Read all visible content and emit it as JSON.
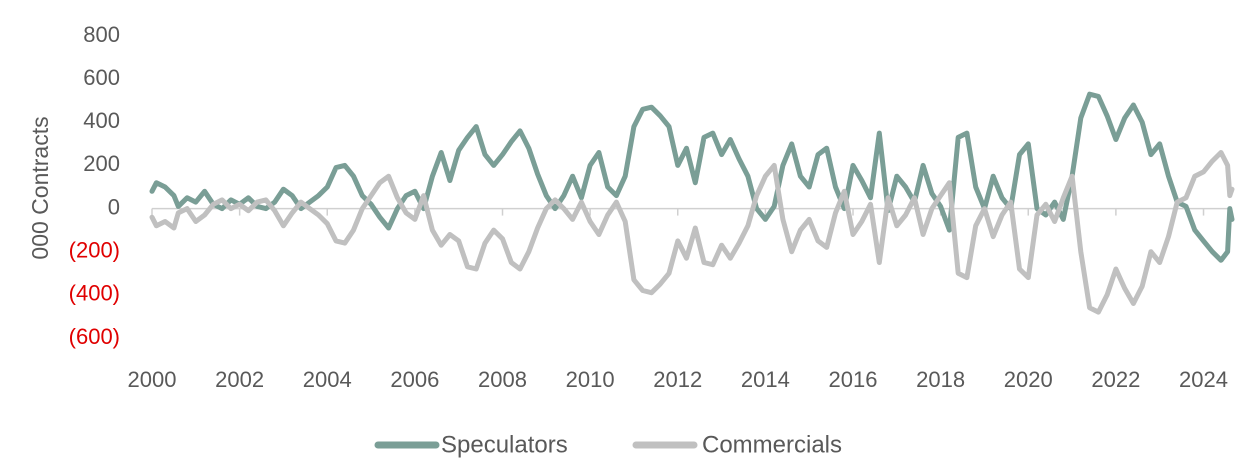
{
  "chart_data": {
    "type": "line",
    "title": "",
    "xlabel": "",
    "ylabel": "000 Contracts",
    "ylim": [
      -600,
      800
    ],
    "y_ticks": [
      800,
      600,
      400,
      200,
      0,
      -200,
      -400,
      -600
    ],
    "y_tick_labels": [
      "800",
      "600",
      "400",
      "200",
      "0",
      "(200)",
      "(400)",
      "(600)"
    ],
    "negative_tick_color": "#e00000",
    "xlim": [
      2000,
      2024.3
    ],
    "x_tick_labels": [
      "2000",
      "2002",
      "2004",
      "2006",
      "2008",
      "2010",
      "2012",
      "2014",
      "2016",
      "2018",
      "2020",
      "2022",
      "2024"
    ],
    "grid": false,
    "legend_position": "bottom",
    "series": [
      {
        "name": "Speculators",
        "color": "#7a9e96",
        "points": [
          [
            2000.0,
            80
          ],
          [
            2000.1,
            120
          ],
          [
            2000.3,
            100
          ],
          [
            2000.5,
            60
          ],
          [
            2000.6,
            10
          ],
          [
            2000.8,
            50
          ],
          [
            2001.0,
            30
          ],
          [
            2001.2,
            80
          ],
          [
            2001.4,
            20
          ],
          [
            2001.6,
            0
          ],
          [
            2001.8,
            40
          ],
          [
            2002.0,
            20
          ],
          [
            2002.2,
            50
          ],
          [
            2002.4,
            10
          ],
          [
            2002.6,
            0
          ],
          [
            2002.8,
            30
          ],
          [
            2003.0,
            90
          ],
          [
            2003.2,
            60
          ],
          [
            2003.4,
            0
          ],
          [
            2003.6,
            30
          ],
          [
            2003.8,
            60
          ],
          [
            2004.0,
            100
          ],
          [
            2004.2,
            190
          ],
          [
            2004.4,
            200
          ],
          [
            2004.6,
            150
          ],
          [
            2004.8,
            60
          ],
          [
            2005.0,
            20
          ],
          [
            2005.2,
            -40
          ],
          [
            2005.4,
            -90
          ],
          [
            2005.6,
            0
          ],
          [
            2005.8,
            60
          ],
          [
            2006.0,
            80
          ],
          [
            2006.2,
            0
          ],
          [
            2006.4,
            150
          ],
          [
            2006.6,
            260
          ],
          [
            2006.8,
            130
          ],
          [
            2007.0,
            270
          ],
          [
            2007.2,
            330
          ],
          [
            2007.4,
            380
          ],
          [
            2007.6,
            250
          ],
          [
            2007.8,
            200
          ],
          [
            2008.0,
            250
          ],
          [
            2008.2,
            310
          ],
          [
            2008.4,
            360
          ],
          [
            2008.6,
            280
          ],
          [
            2008.8,
            160
          ],
          [
            2009.0,
            60
          ],
          [
            2009.2,
            0
          ],
          [
            2009.4,
            60
          ],
          [
            2009.6,
            150
          ],
          [
            2009.8,
            50
          ],
          [
            2010.0,
            200
          ],
          [
            2010.2,
            260
          ],
          [
            2010.4,
            100
          ],
          [
            2010.6,
            60
          ],
          [
            2010.8,
            150
          ],
          [
            2011.0,
            380
          ],
          [
            2011.2,
            460
          ],
          [
            2011.4,
            470
          ],
          [
            2011.6,
            430
          ],
          [
            2011.8,
            380
          ],
          [
            2012.0,
            200
          ],
          [
            2012.2,
            280
          ],
          [
            2012.4,
            120
          ],
          [
            2012.6,
            330
          ],
          [
            2012.8,
            350
          ],
          [
            2013.0,
            250
          ],
          [
            2013.2,
            320
          ],
          [
            2013.4,
            230
          ],
          [
            2013.6,
            150
          ],
          [
            2013.8,
            0
          ],
          [
            2014.0,
            -50
          ],
          [
            2014.2,
            10
          ],
          [
            2014.4,
            200
          ],
          [
            2014.6,
            300
          ],
          [
            2014.8,
            150
          ],
          [
            2015.0,
            100
          ],
          [
            2015.2,
            250
          ],
          [
            2015.4,
            280
          ],
          [
            2015.6,
            100
          ],
          [
            2015.8,
            0
          ],
          [
            2016.0,
            200
          ],
          [
            2016.2,
            130
          ],
          [
            2016.4,
            50
          ],
          [
            2016.6,
            350
          ],
          [
            2016.8,
            -10
          ],
          [
            2017.0,
            150
          ],
          [
            2017.2,
            100
          ],
          [
            2017.4,
            30
          ],
          [
            2017.6,
            200
          ],
          [
            2017.8,
            70
          ],
          [
            2018.0,
            10
          ],
          [
            2018.2,
            -100
          ],
          [
            2018.4,
            330
          ],
          [
            2018.6,
            350
          ],
          [
            2018.8,
            100
          ],
          [
            2019.0,
            0
          ],
          [
            2019.2,
            150
          ],
          [
            2019.4,
            50
          ],
          [
            2019.6,
            0
          ],
          [
            2019.8,
            250
          ],
          [
            2020.0,
            300
          ],
          [
            2020.2,
            0
          ],
          [
            2020.4,
            -30
          ],
          [
            2020.6,
            30
          ],
          [
            2020.8,
            -50
          ],
          [
            2021.0,
            150
          ],
          [
            2021.2,
            420
          ],
          [
            2021.4,
            530
          ],
          [
            2021.6,
            520
          ],
          [
            2021.8,
            430
          ],
          [
            2022.0,
            320
          ],
          [
            2022.2,
            420
          ],
          [
            2022.4,
            480
          ],
          [
            2022.6,
            400
          ],
          [
            2022.8,
            250
          ],
          [
            2023.0,
            300
          ],
          [
            2023.2,
            150
          ],
          [
            2023.4,
            30
          ],
          [
            2023.6,
            10
          ],
          [
            2023.8,
            -100
          ],
          [
            2024.0,
            -150
          ],
          [
            2024.2,
            -200
          ],
          [
            2024.4,
            -240
          ],
          [
            2024.55,
            -200
          ],
          [
            2024.6,
            0
          ],
          [
            2024.65,
            -50
          ]
        ]
      },
      {
        "name": "Commercials",
        "color": "#c0c0c0",
        "points": [
          [
            2000.0,
            -40
          ],
          [
            2000.1,
            -80
          ],
          [
            2000.3,
            -60
          ],
          [
            2000.5,
            -90
          ],
          [
            2000.6,
            -20
          ],
          [
            2000.8,
            0
          ],
          [
            2001.0,
            -60
          ],
          [
            2001.2,
            -30
          ],
          [
            2001.4,
            20
          ],
          [
            2001.6,
            40
          ],
          [
            2001.8,
            0
          ],
          [
            2002.0,
            20
          ],
          [
            2002.2,
            -10
          ],
          [
            2002.4,
            30
          ],
          [
            2002.6,
            40
          ],
          [
            2002.8,
            -10
          ],
          [
            2003.0,
            -80
          ],
          [
            2003.2,
            -20
          ],
          [
            2003.4,
            30
          ],
          [
            2003.6,
            0
          ],
          [
            2003.8,
            -30
          ],
          [
            2004.0,
            -70
          ],
          [
            2004.2,
            -150
          ],
          [
            2004.4,
            -160
          ],
          [
            2004.6,
            -100
          ],
          [
            2004.8,
            0
          ],
          [
            2005.0,
            60
          ],
          [
            2005.2,
            120
          ],
          [
            2005.4,
            150
          ],
          [
            2005.6,
            50
          ],
          [
            2005.8,
            -20
          ],
          [
            2006.0,
            -50
          ],
          [
            2006.2,
            60
          ],
          [
            2006.4,
            -100
          ],
          [
            2006.6,
            -170
          ],
          [
            2006.8,
            -120
          ],
          [
            2007.0,
            -150
          ],
          [
            2007.2,
            -270
          ],
          [
            2007.4,
            -280
          ],
          [
            2007.6,
            -160
          ],
          [
            2007.8,
            -100
          ],
          [
            2008.0,
            -140
          ],
          [
            2008.2,
            -250
          ],
          [
            2008.4,
            -280
          ],
          [
            2008.6,
            -200
          ],
          [
            2008.8,
            -90
          ],
          [
            2009.0,
            0
          ],
          [
            2009.2,
            40
          ],
          [
            2009.4,
            0
          ],
          [
            2009.6,
            -50
          ],
          [
            2009.8,
            30
          ],
          [
            2010.0,
            -60
          ],
          [
            2010.2,
            -120
          ],
          [
            2010.4,
            -30
          ],
          [
            2010.6,
            30
          ],
          [
            2010.8,
            -60
          ],
          [
            2011.0,
            -330
          ],
          [
            2011.2,
            -380
          ],
          [
            2011.4,
            -390
          ],
          [
            2011.6,
            -350
          ],
          [
            2011.8,
            -300
          ],
          [
            2012.0,
            -150
          ],
          [
            2012.2,
            -230
          ],
          [
            2012.4,
            -90
          ],
          [
            2012.6,
            -250
          ],
          [
            2012.8,
            -260
          ],
          [
            2013.0,
            -170
          ],
          [
            2013.2,
            -230
          ],
          [
            2013.4,
            -160
          ],
          [
            2013.6,
            -80
          ],
          [
            2013.8,
            60
          ],
          [
            2014.0,
            150
          ],
          [
            2014.2,
            200
          ],
          [
            2014.4,
            -50
          ],
          [
            2014.6,
            -200
          ],
          [
            2014.8,
            -100
          ],
          [
            2015.0,
            -50
          ],
          [
            2015.2,
            -150
          ],
          [
            2015.4,
            -180
          ],
          [
            2015.6,
            -20
          ],
          [
            2015.8,
            80
          ],
          [
            2016.0,
            -120
          ],
          [
            2016.2,
            -60
          ],
          [
            2016.4,
            20
          ],
          [
            2016.6,
            -250
          ],
          [
            2016.8,
            50
          ],
          [
            2017.0,
            -80
          ],
          [
            2017.2,
            -30
          ],
          [
            2017.4,
            50
          ],
          [
            2017.6,
            -120
          ],
          [
            2017.8,
            0
          ],
          [
            2018.0,
            60
          ],
          [
            2018.2,
            120
          ],
          [
            2018.4,
            -300
          ],
          [
            2018.6,
            -320
          ],
          [
            2018.8,
            -80
          ],
          [
            2019.0,
            0
          ],
          [
            2019.2,
            -130
          ],
          [
            2019.4,
            -30
          ],
          [
            2019.6,
            30
          ],
          [
            2019.8,
            -280
          ],
          [
            2020.0,
            -320
          ],
          [
            2020.2,
            -30
          ],
          [
            2020.4,
            20
          ],
          [
            2020.6,
            -60
          ],
          [
            2020.8,
            50
          ],
          [
            2021.0,
            150
          ],
          [
            2021.2,
            -200
          ],
          [
            2021.4,
            -460
          ],
          [
            2021.6,
            -480
          ],
          [
            2021.8,
            -400
          ],
          [
            2022.0,
            -280
          ],
          [
            2022.2,
            -370
          ],
          [
            2022.4,
            -440
          ],
          [
            2022.6,
            -360
          ],
          [
            2022.8,
            -200
          ],
          [
            2023.0,
            -250
          ],
          [
            2023.2,
            -130
          ],
          [
            2023.4,
            30
          ],
          [
            2023.6,
            50
          ],
          [
            2023.8,
            150
          ],
          [
            2024.0,
            170
          ],
          [
            2024.2,
            220
          ],
          [
            2024.4,
            260
          ],
          [
            2024.55,
            200
          ],
          [
            2024.6,
            60
          ],
          [
            2024.65,
            90
          ]
        ]
      }
    ]
  }
}
